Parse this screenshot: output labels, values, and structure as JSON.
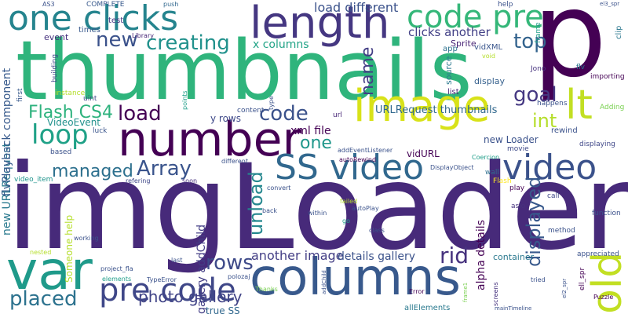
{
  "words": [
    {
      "text": "imgLoader",
      "color": "#472a7a"
    },
    {
      "text": "thumbnails",
      "color": "#2fb47c"
    },
    {
      "text": "p",
      "color": "#440154"
    },
    {
      "text": "var",
      "color": "#1f9a8a"
    },
    {
      "text": "columns",
      "color": "#38598c"
    },
    {
      "text": "number",
      "color": "#440154"
    },
    {
      "text": "image",
      "color": "#d8e219"
    },
    {
      "text": "length",
      "color": "#453781"
    },
    {
      "text": "one clicks",
      "color": "#25848e"
    },
    {
      "text": "code pre",
      "color": "#35b779"
    },
    {
      "text": "SS video",
      "color": "#31688e"
    },
    {
      "text": "video",
      "color": "#3b528b"
    },
    {
      "text": "old",
      "color": "#c2df23"
    },
    {
      "text": "lt",
      "color": "#c2df23"
    },
    {
      "text": "pre code",
      "color": "#3f4788"
    },
    {
      "text": "creating",
      "color": "#21918c"
    },
    {
      "text": "new",
      "color": "#3b528b"
    },
    {
      "text": "loop",
      "color": "#1fa187"
    },
    {
      "text": "Array",
      "color": "#3a548c"
    },
    {
      "text": "load",
      "color": "#440154"
    },
    {
      "text": "code",
      "color": "#3b528b"
    },
    {
      "text": "Flash CS4",
      "color": "#2db27d"
    },
    {
      "text": "int",
      "color": "#b5de2b"
    },
    {
      "text": "top",
      "color": "#33638d"
    },
    {
      "text": "goal",
      "color": "#453882"
    },
    {
      "text": "one",
      "color": "#1f978b"
    },
    {
      "text": "managed",
      "color": "#2d708e"
    },
    {
      "text": "placed",
      "color": "#2c728e"
    },
    {
      "text": "rows",
      "color": "#3e4a89"
    },
    {
      "text": "rid",
      "color": "#46327e"
    },
    {
      "text": "unload",
      "color": "#24878e"
    },
    {
      "text": "displayed",
      "color": "#38598c"
    },
    {
      "text": "name",
      "color": "#433e85"
    },
    {
      "text": "photo gallery",
      "color": "#414487"
    },
    {
      "text": "another image",
      "color": "#433e85"
    },
    {
      "text": "load different",
      "color": "#3b528b"
    },
    {
      "text": "clicks another",
      "color": "#424086"
    },
    {
      "text": "x columns",
      "color": "#20a386"
    },
    {
      "text": "y rows",
      "color": "#3e4989"
    },
    {
      "text": "URLRequest thumbnails",
      "color": "#31688e"
    },
    {
      "text": "xml file",
      "color": "#440154"
    },
    {
      "text": "vidURL",
      "color": "#440154"
    },
    {
      "text": "new Loader",
      "color": "#3b528b"
    },
    {
      "text": "details gallery",
      "color": "#3b528b"
    },
    {
      "text": "alpha details",
      "color": "#440154"
    },
    {
      "text": "gallery addChild",
      "color": "#433e85"
    },
    {
      "text": "new URLRequest",
      "color": "#29798e"
    },
    {
      "text": "flvPlayback component",
      "color": "#375a8c"
    },
    {
      "text": "Someone help",
      "color": "#b5de2b"
    },
    {
      "text": "true SS",
      "color": "#31688e"
    },
    {
      "text": "VideoEvent",
      "color": "#21918c"
    },
    {
      "text": "Sprite",
      "color": "#482475"
    },
    {
      "text": "source",
      "color": "#2a788e"
    },
    {
      "text": "display",
      "color": "#35608d"
    },
    {
      "text": "rewind",
      "color": "#3b528b"
    },
    {
      "text": "test",
      "color": "#453581"
    },
    {
      "text": "times",
      "color": "#38598c"
    },
    {
      "text": "event",
      "color": "#46307e"
    },
    {
      "text": "app",
      "color": "#2c728e"
    },
    {
      "text": "vidXML",
      "color": "#39558c"
    },
    {
      "text": "list",
      "color": "#482878"
    },
    {
      "text": "help",
      "color": "#3b528b"
    },
    {
      "text": "flv",
      "color": "#2b758e"
    },
    {
      "text": "clip",
      "color": "#2a778e"
    },
    {
      "text": "frame",
      "color": "#1f9e89"
    },
    {
      "text": "Jono",
      "color": "#46327e"
    },
    {
      "text": "importing",
      "color": "#440154"
    },
    {
      "text": "happens",
      "color": "#3b528b"
    },
    {
      "text": "Adding",
      "color": "#7ad151"
    },
    {
      "text": "COMPLETE",
      "color": "#38598c"
    },
    {
      "text": "push",
      "color": "#31688e"
    },
    {
      "text": "AS3",
      "color": "#3b528b"
    },
    {
      "text": "Library",
      "color": "#482878"
    },
    {
      "text": "building",
      "color": "#3f4788"
    },
    {
      "text": "instance",
      "color": "#b5de2b"
    },
    {
      "text": "first",
      "color": "#38598c"
    },
    {
      "text": "uint",
      "color": "#3e4a89"
    },
    {
      "text": "points",
      "color": "#1f9e89"
    },
    {
      "text": "type",
      "color": "#3b528b"
    },
    {
      "text": "url",
      "color": "#482878"
    },
    {
      "text": "content",
      "color": "#3b528b"
    },
    {
      "text": "luck",
      "color": "#39558c"
    },
    {
      "text": "based",
      "color": "#3b528b"
    },
    {
      "text": "video_item",
      "color": "#1f948c"
    },
    {
      "text": "different",
      "color": "#3b528b"
    },
    {
      "text": "refering",
      "color": "#3f4788"
    },
    {
      "text": "soon",
      "color": "#46307e"
    },
    {
      "text": "addEventListener",
      "color": "#3b528b"
    },
    {
      "text": "autoRewind",
      "color": "#440154"
    },
    {
      "text": "DisplayObject",
      "color": "#3b528b"
    },
    {
      "text": "Coercion",
      "color": "#1f9e89"
    },
    {
      "text": "movie",
      "color": "#3e4a89"
    },
    {
      "text": "displaying",
      "color": "#3f4788"
    },
    {
      "text": "wall",
      "color": "#2e6e8e"
    },
    {
      "text": "play",
      "color": "#440154"
    },
    {
      "text": "Flash",
      "color": "#fde725"
    },
    {
      "text": "call",
      "color": "#3f4788"
    },
    {
      "text": "function",
      "color": "#3b528b"
    },
    {
      "text": "aslo",
      "color": "#46327e"
    },
    {
      "text": "convert",
      "color": "#3b528b"
    },
    {
      "text": "failed",
      "color": "#b5de2b"
    },
    {
      "text": "autoPlay",
      "color": "#3b528b"
    },
    {
      "text": "back",
      "color": "#3b528b"
    },
    {
      "text": "within",
      "color": "#3b528b"
    },
    {
      "text": "go",
      "color": "#1f9e89"
    },
    {
      "text": "class",
      "color": "#3b528b"
    },
    {
      "text": "method",
      "color": "#3b528b"
    },
    {
      "text": "appreciated",
      "color": "#3b528b"
    },
    {
      "text": "container",
      "color": "#2a788e"
    },
    {
      "text": "working",
      "color": "#3b528b"
    },
    {
      "text": "nested",
      "color": "#b5de2b"
    },
    {
      "text": "project_fla",
      "color": "#3b528b"
    },
    {
      "text": "elements",
      "color": "#1f9e89"
    },
    {
      "text": "TypeError",
      "color": "#3b528b"
    },
    {
      "text": "last",
      "color": "#3b528b"
    },
    {
      "text": "polozaj",
      "color": "#3b528b"
    },
    {
      "text": "Thanks",
      "color": "#7ad151"
    },
    {
      "text": "Error",
      "color": "#440154"
    },
    {
      "text": "allElements",
      "color": "#29798e"
    },
    {
      "text": "frame1",
      "color": "#7ad151"
    },
    {
      "text": "tried",
      "color": "#3b528b"
    },
    {
      "text": "screens",
      "color": "#46327e"
    },
    {
      "text": "mainTimeline",
      "color": "#3b528b"
    },
    {
      "text": "Puzzle",
      "color": "#440154"
    },
    {
      "text": "ell_spr",
      "color": "#440154"
    },
    {
      "text": "el2_spr",
      "color": "#3b528b"
    },
    {
      "text": "void",
      "color": "#b5de2b"
    },
    {
      "text": "addChild",
      "color": "#3b528b"
    },
    {
      "text": "el3_spr",
      "color": "#3b528b"
    }
  ]
}
